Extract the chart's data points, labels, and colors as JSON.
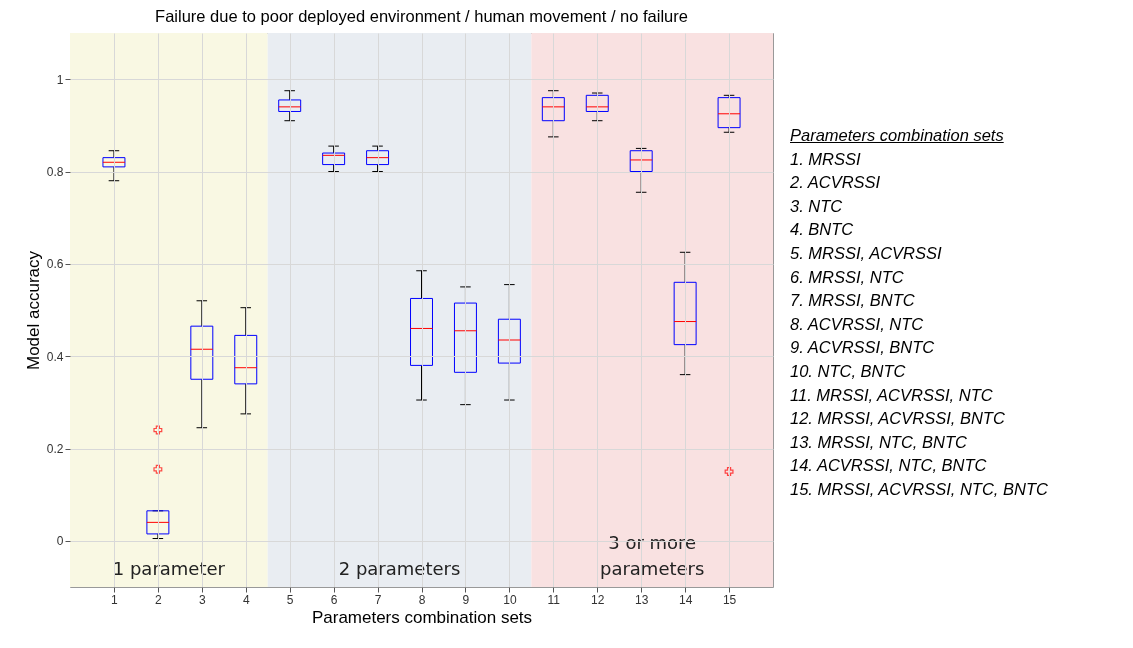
{
  "chart_data": {
    "type": "box",
    "title": "Failure due to poor deployed environment / human movement / no failure",
    "xlabel": "Parameters combination sets",
    "ylabel": "Model accuracy",
    "x": [
      1,
      2,
      3,
      4,
      5,
      6,
      7,
      8,
      9,
      10,
      11,
      12,
      13,
      14,
      15
    ],
    "xlim": [
      0,
      16
    ],
    "xticks": [
      1,
      2,
      3,
      4,
      5,
      6,
      7,
      8,
      9,
      10,
      11,
      12,
      13,
      14,
      15
    ],
    "ylim": [
      -0.1,
      1.1
    ],
    "yticks": [
      0,
      0.2,
      0.4,
      0.6,
      0.8,
      1
    ],
    "grid": true,
    "bands": [
      {
        "axis": "x",
        "from": 0,
        "to": 4.5,
        "label": "1 parameter",
        "color": "#f9f8e3"
      },
      {
        "axis": "x",
        "from": 4.5,
        "to": 10.5,
        "label": "2 parameters",
        "color": "#e9edf2"
      },
      {
        "axis": "x",
        "from": 10.5,
        "to": 16,
        "label": "3 or more parameters",
        "color": "#f9e1e1"
      }
    ],
    "series": [
      {
        "color": "#0000ff",
        "boxes": [
          {
            "low": 0.78,
            "q1": 0.81,
            "median": 0.82,
            "q3": 0.83,
            "high": 0.845
          },
          {
            "low": 0.005,
            "q1": 0.015,
            "median": 0.04,
            "q3": 0.065,
            "high": 0.065,
            "outliers": [
              0.24,
              0.155
            ]
          },
          {
            "low": 0.245,
            "q1": 0.35,
            "median": 0.415,
            "q3": 0.465,
            "high": 0.52
          },
          {
            "low": 0.275,
            "q1": 0.34,
            "median": 0.375,
            "q3": 0.445,
            "high": 0.505
          },
          {
            "low": 0.91,
            "q1": 0.93,
            "median": 0.94,
            "q3": 0.955,
            "high": 0.975
          },
          {
            "low": 0.8,
            "q1": 0.815,
            "median": 0.835,
            "q3": 0.84,
            "high": 0.855
          },
          {
            "low": 0.8,
            "q1": 0.815,
            "median": 0.83,
            "q3": 0.845,
            "high": 0.855
          },
          {
            "low": 0.305,
            "q1": 0.38,
            "median": 0.46,
            "q3": 0.525,
            "high": 0.585
          },
          {
            "low": 0.295,
            "q1": 0.365,
            "median": 0.455,
            "q3": 0.515,
            "high": 0.55
          },
          {
            "low": 0.305,
            "q1": 0.385,
            "median": 0.435,
            "q3": 0.48,
            "high": 0.555
          },
          {
            "low": 0.875,
            "q1": 0.91,
            "median": 0.94,
            "q3": 0.96,
            "high": 0.975
          },
          {
            "low": 0.91,
            "q1": 0.93,
            "median": 0.94,
            "q3": 0.965,
            "high": 0.97
          },
          {
            "low": 0.755,
            "q1": 0.8,
            "median": 0.825,
            "q3": 0.845,
            "high": 0.85
          },
          {
            "low": 0.36,
            "q1": 0.425,
            "median": 0.475,
            "q3": 0.56,
            "high": 0.625
          },
          {
            "low": 0.885,
            "q1": 0.895,
            "median": 0.925,
            "q3": 0.96,
            "high": 0.965,
            "outliers": [
              0.15
            ]
          }
        ]
      }
    ],
    "annotations": [
      "Parameters combination sets",
      "1. MRSSI",
      "2. ACVRSSI",
      "3. NTC",
      "4. BNTC",
      "5. MRSSI, ACVRSSI",
      "6. MRSSI, NTC",
      "7. MRSSI, BNTC",
      "8. ACVRSSI, NTC",
      "9. ACVRSSI, BNTC",
      "10. NTC, BNTC",
      "11. MRSSI, ACVRSSI, NTC",
      "12. MRSSI, ACVRSSI, BNTC",
      "13. MRSSI, NTC, BNTC",
      "14. ACVRSSI, NTC, BNTC",
      "15. MRSSI, ACVRSSI, NTC, BNTC"
    ]
  }
}
